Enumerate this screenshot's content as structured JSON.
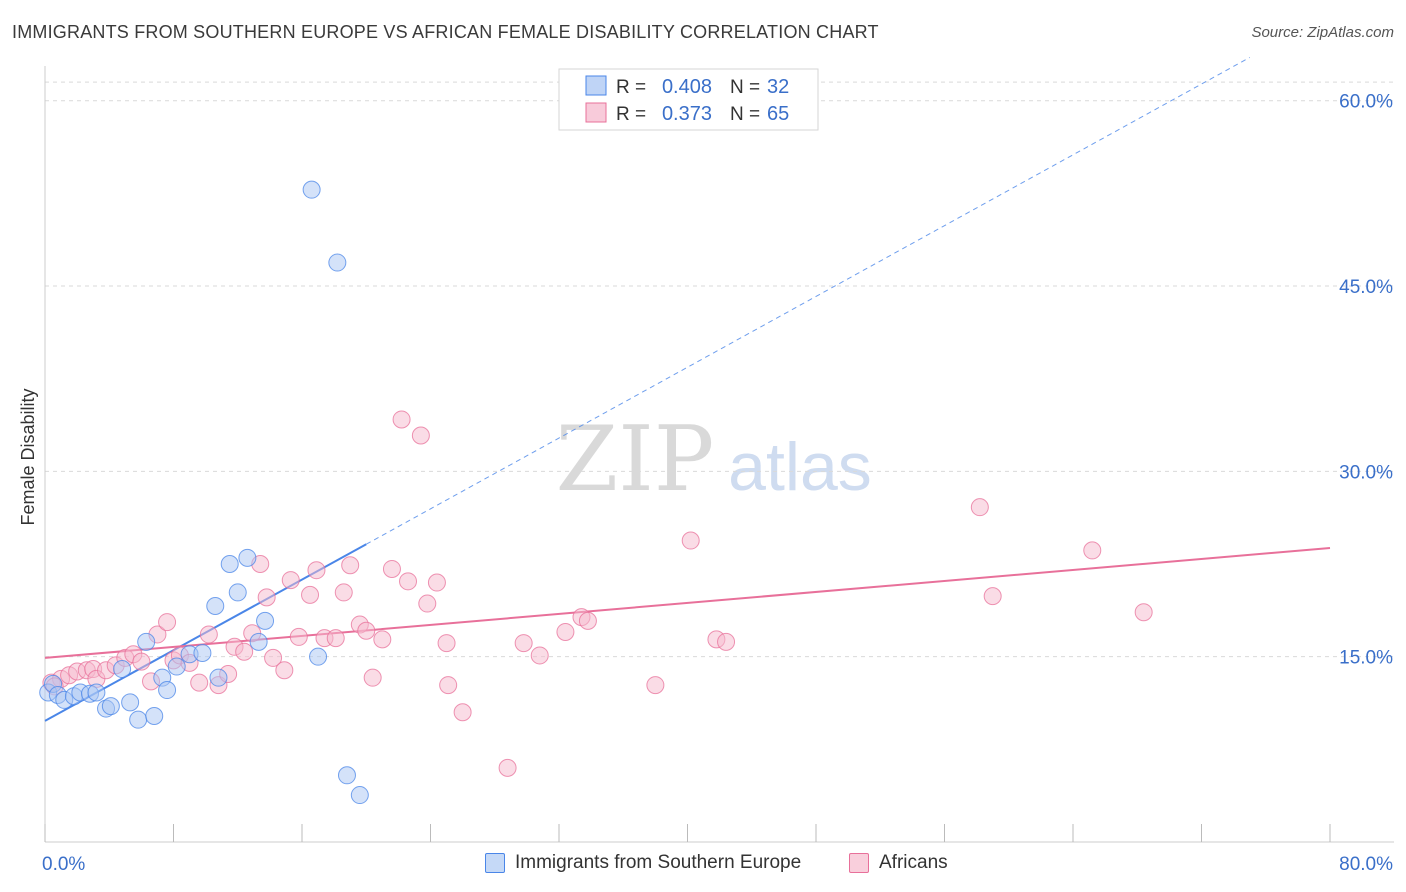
{
  "title": "IMMIGRANTS FROM SOUTHERN EUROPE VS AFRICAN FEMALE DISABILITY CORRELATION CHART",
  "source": "Source: ZipAtlas.com",
  "watermark": {
    "zip": "ZIP",
    "atlas": "atlas"
  },
  "colors": {
    "blue": "#4a86e8",
    "blue_fill": "#a9c6f3",
    "pink": "#e8709a",
    "pink_fill": "#f6b9cd",
    "axis_label": "#3a6fc9",
    "grid": "#d9d9d9"
  },
  "legend": {
    "r_label": "R =",
    "n_label": "N =",
    "rows": [
      {
        "series": "Immigrants from Southern Europe",
        "r": "0.408",
        "n": "32"
      },
      {
        "series": "Africans",
        "r": "0.373",
        "n": "65"
      }
    ]
  },
  "chart_data": {
    "type": "scatter",
    "title": "IMMIGRANTS FROM SOUTHERN EUROPE VS AFRICAN FEMALE DISABILITY CORRELATION CHART",
    "xlabel": "",
    "ylabel": "Female Disability",
    "xlim": [
      0,
      80
    ],
    "ylim": [
      0,
      62
    ],
    "x_tick_labels": [
      "0.0%",
      "80.0%"
    ],
    "y_ticks": [
      15,
      30,
      45,
      60
    ],
    "y_tick_labels": [
      "15.0%",
      "30.0%",
      "45.0%",
      "60.0%"
    ],
    "grid": true,
    "legend_position": "top-center",
    "series": [
      {
        "name": "Immigrants from Southern Europe",
        "r": 0.408,
        "n": 32,
        "points": [
          [
            0.2,
            12.1
          ],
          [
            0.5,
            12.8
          ],
          [
            0.8,
            11.9
          ],
          [
            1.2,
            11.5
          ],
          [
            1.8,
            11.8
          ],
          [
            2.2,
            12.1
          ],
          [
            2.8,
            12.0
          ],
          [
            3.2,
            12.1
          ],
          [
            3.8,
            10.8
          ],
          [
            4.1,
            11.0
          ],
          [
            4.8,
            14.0
          ],
          [
            5.3,
            11.3
          ],
          [
            5.8,
            9.9
          ],
          [
            6.3,
            16.2
          ],
          [
            6.8,
            10.2
          ],
          [
            7.3,
            13.3
          ],
          [
            7.6,
            12.3
          ],
          [
            8.2,
            14.2
          ],
          [
            9.0,
            15.2
          ],
          [
            9.8,
            15.3
          ],
          [
            10.6,
            19.1
          ],
          [
            10.8,
            13.3
          ],
          [
            11.5,
            22.5
          ],
          [
            12.0,
            20.2
          ],
          [
            12.6,
            23.0
          ],
          [
            13.3,
            16.2
          ],
          [
            13.7,
            17.9
          ],
          [
            16.6,
            52.8
          ],
          [
            17.0,
            15.0
          ],
          [
            18.2,
            46.9
          ],
          [
            18.8,
            5.4
          ],
          [
            19.6,
            3.8
          ]
        ],
        "trend": {
          "x0": 0,
          "y0": 9.8,
          "x1": 20,
          "y1": 24.1,
          "dash_to_x": 75,
          "dash_to_y": 63.5
        }
      },
      {
        "name": "Africans",
        "r": 0.373,
        "n": 65,
        "points": [
          [
            0.4,
            12.9
          ],
          [
            1.0,
            13.2
          ],
          [
            1.5,
            13.5
          ],
          [
            2.0,
            13.8
          ],
          [
            2.6,
            13.9
          ],
          [
            3.0,
            14.0
          ],
          [
            3.2,
            13.2
          ],
          [
            3.8,
            13.9
          ],
          [
            4.4,
            14.3
          ],
          [
            5.0,
            14.9
          ],
          [
            5.5,
            15.2
          ],
          [
            6.0,
            14.6
          ],
          [
            6.6,
            13.0
          ],
          [
            7.0,
            16.8
          ],
          [
            7.6,
            17.8
          ],
          [
            8.0,
            14.7
          ],
          [
            8.4,
            15.1
          ],
          [
            9.0,
            14.5
          ],
          [
            9.6,
            12.9
          ],
          [
            10.2,
            16.8
          ],
          [
            10.8,
            12.7
          ],
          [
            11.4,
            13.6
          ],
          [
            11.8,
            15.8
          ],
          [
            12.4,
            15.4
          ],
          [
            12.9,
            16.9
          ],
          [
            13.4,
            22.5
          ],
          [
            13.8,
            19.8
          ],
          [
            14.2,
            14.9
          ],
          [
            14.9,
            13.9
          ],
          [
            15.3,
            21.2
          ],
          [
            15.8,
            16.6
          ],
          [
            16.5,
            20.0
          ],
          [
            16.9,
            22.0
          ],
          [
            17.4,
            16.5
          ],
          [
            18.1,
            16.5
          ],
          [
            18.6,
            20.2
          ],
          [
            19.0,
            22.4
          ],
          [
            19.6,
            17.6
          ],
          [
            20.0,
            17.1
          ],
          [
            20.4,
            13.3
          ],
          [
            21.0,
            16.4
          ],
          [
            21.6,
            22.1
          ],
          [
            22.2,
            34.2
          ],
          [
            22.6,
            21.1
          ],
          [
            23.4,
            32.9
          ],
          [
            23.8,
            19.3
          ],
          [
            24.4,
            21.0
          ],
          [
            25.0,
            16.1
          ],
          [
            25.1,
            12.7
          ],
          [
            26.0,
            10.5
          ],
          [
            28.8,
            6.0
          ],
          [
            29.8,
            16.1
          ],
          [
            30.8,
            15.1
          ],
          [
            32.4,
            17.0
          ],
          [
            33.4,
            18.2
          ],
          [
            33.8,
            17.9
          ],
          [
            38.0,
            12.7
          ],
          [
            40.2,
            24.4
          ],
          [
            41.8,
            16.4
          ],
          [
            42.4,
            16.2
          ],
          [
            58.2,
            27.1
          ],
          [
            59.0,
            19.9
          ],
          [
            65.2,
            23.6
          ],
          [
            68.4,
            18.6
          ],
          [
            0.6,
            12.6
          ]
        ],
        "trend": {
          "x0": 0,
          "y0": 14.9,
          "x1": 80,
          "y1": 23.8
        }
      }
    ]
  }
}
